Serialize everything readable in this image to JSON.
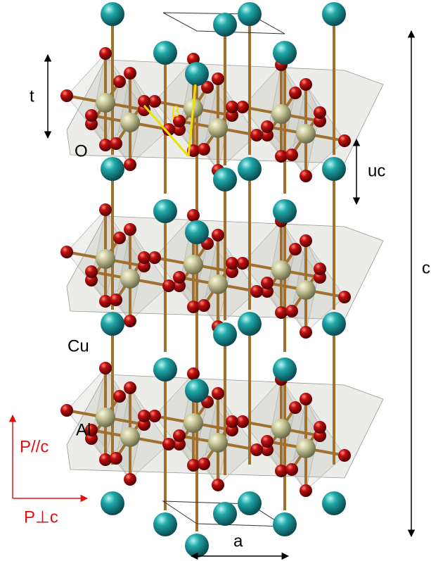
{
  "annotations": {
    "thickness": "t",
    "oxygen": "O",
    "angle": "β",
    "uc": "uc",
    "c_axis": "c",
    "copper": "Cu",
    "aluminium": "Al",
    "p_parallel": "P//c",
    "p_perp": "P⊥c",
    "a_axis": "a"
  }
}
